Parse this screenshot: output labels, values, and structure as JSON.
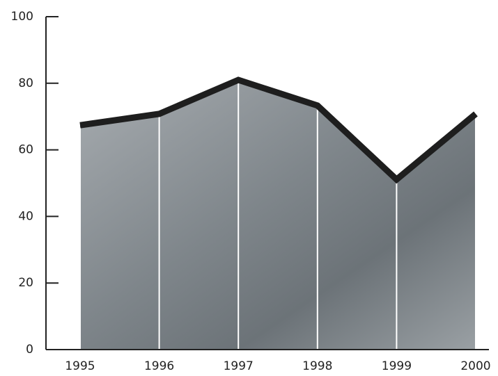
{
  "chart_data": {
    "type": "area",
    "x": [
      1995,
      1996,
      1997,
      1998,
      1999,
      2000
    ],
    "values": [
      67.4,
      70.8,
      81,
      73.3,
      51.1,
      70.8
    ],
    "color": "#8f959a",
    "line_color": "#1e1e1e",
    "xlim": [
      1995,
      2000
    ],
    "ylim": [
      0,
      100
    ],
    "yticks": [
      0,
      20,
      40,
      60,
      80,
      100
    ]
  }
}
